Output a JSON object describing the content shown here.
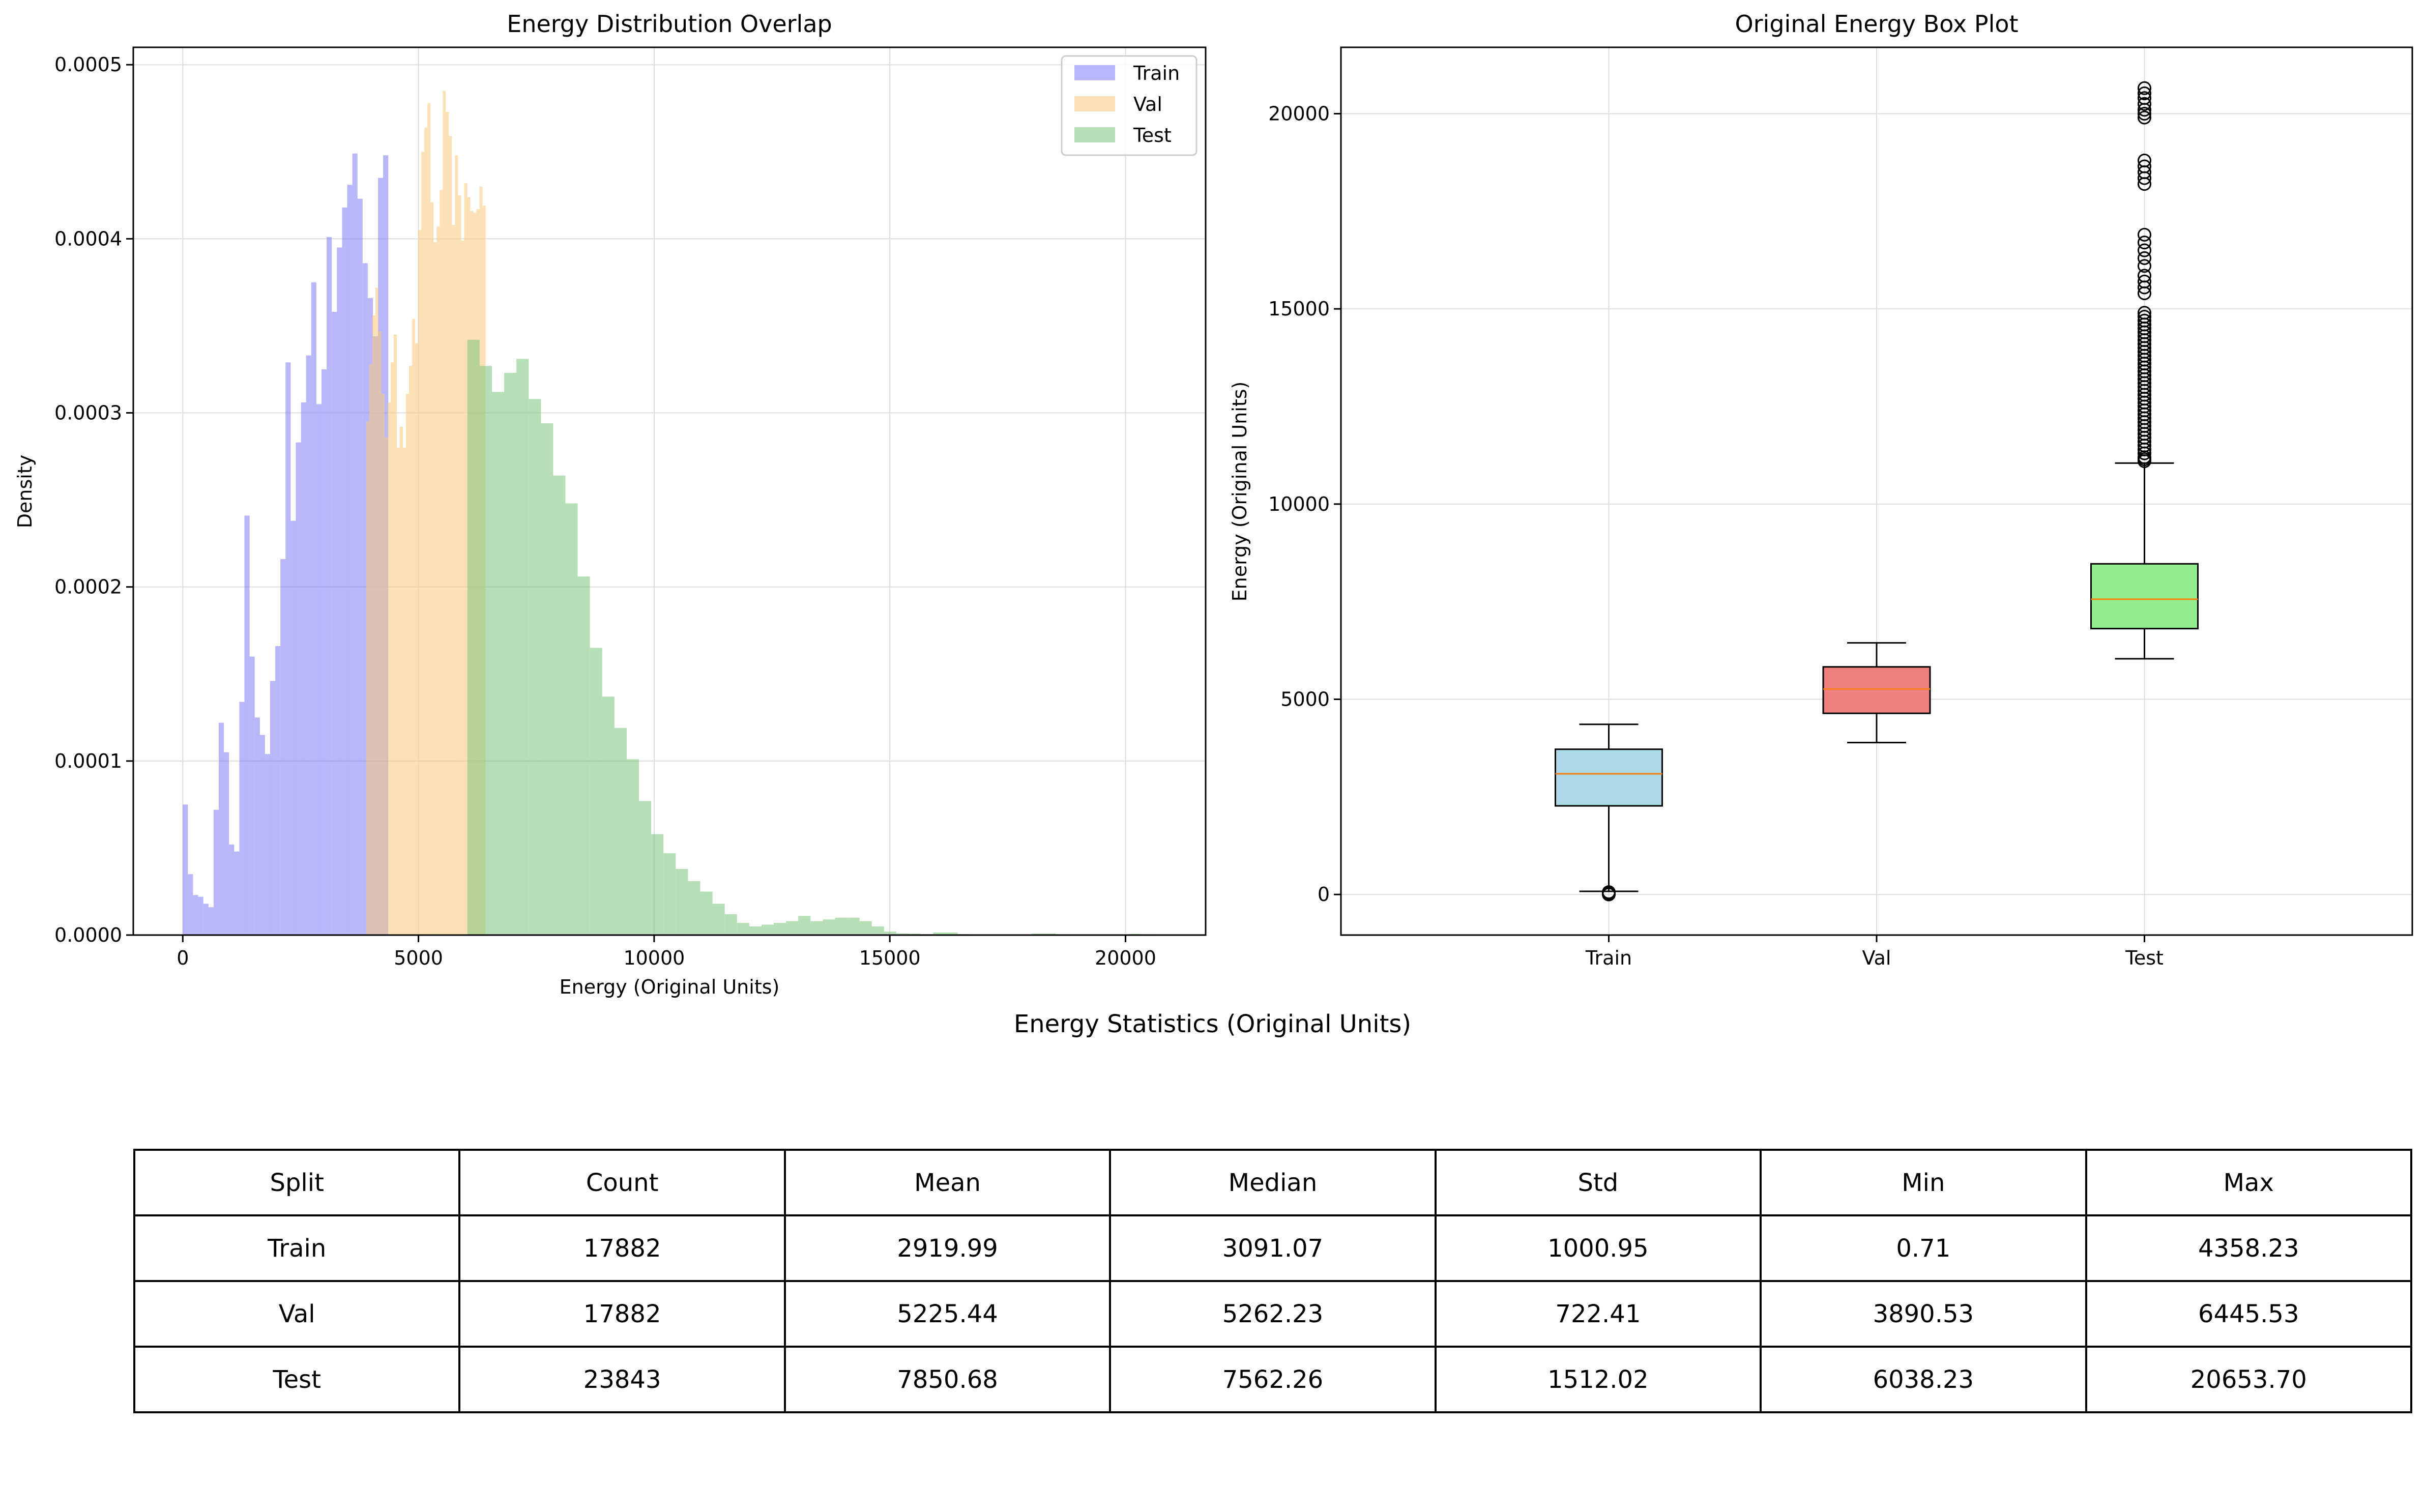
{
  "colors": {
    "train": "#7b7bf4",
    "val": "#fcc97a",
    "test": "#7cc57c",
    "box_train": "#add8e6",
    "box_val": "#f08080",
    "box_test": "#90ee90",
    "median": "#ff7f0e",
    "grid": "#dddddd"
  },
  "chart_data": [
    {
      "type": "histogram",
      "title": "Energy Distribution Overlap",
      "xlabel": "Energy (Original Units)",
      "ylabel": "Density",
      "xlim": [
        -1050,
        21700
      ],
      "ylim": [
        0,
        0.00051
      ],
      "xticks": [
        "0",
        "5000",
        "10000",
        "15000",
        "20000"
      ],
      "yticks": [
        "0.0000",
        "0.0001",
        "0.0002",
        "0.0003",
        "0.0004",
        "0.0005"
      ],
      "grid": true,
      "legend_position": "top-right",
      "series": [
        {
          "name": "Train",
          "color_key": "train",
          "bin_width": 109,
          "bins": [
            [
              0,
              7.5e-05
            ],
            [
              109,
              3.5e-05
            ],
            [
              218,
              2.3e-05
            ],
            [
              327,
              2.2e-05
            ],
            [
              436,
              1.8e-05
            ],
            [
              545,
              1.6e-05
            ],
            [
              654,
              7.2e-05
            ],
            [
              763,
              0.000122
            ],
            [
              872,
              0.000105
            ],
            [
              981,
              5.2e-05
            ],
            [
              1090,
              4.8e-05
            ],
            [
              1199,
              0.000134
            ],
            [
              1308,
              0.000241
            ],
            [
              1417,
              0.00016
            ],
            [
              1526,
              0.000125
            ],
            [
              1635,
              0.000115
            ],
            [
              1744,
              0.000104
            ],
            [
              1853,
              0.000146
            ],
            [
              1962,
              0.000166
            ],
            [
              2071,
              0.000216
            ],
            [
              2180,
              0.000329
            ],
            [
              2289,
              0.000238
            ],
            [
              2398,
              0.000283
            ],
            [
              2507,
              0.000306
            ],
            [
              2616,
              0.000333
            ],
            [
              2725,
              0.000375
            ],
            [
              2834,
              0.000305
            ],
            [
              2943,
              0.000325
            ],
            [
              3052,
              0.000401
            ],
            [
              3161,
              0.000358
            ],
            [
              3270,
              0.000395
            ],
            [
              3379,
              0.000418
            ],
            [
              3488,
              0.000431
            ],
            [
              3597,
              0.000449
            ],
            [
              3706,
              0.000423
            ],
            [
              3815,
              0.000386
            ],
            [
              3924,
              0.000366
            ],
            [
              4033,
              0.000344
            ],
            [
              4142,
              0.000435
            ],
            [
              4251,
              0.000448
            ]
          ]
        },
        {
          "name": "Val",
          "color_key": "val",
          "bin_width": 65,
          "bins": [
            [
              3890,
              0.000295
            ],
            [
              3955,
              0.000328
            ],
            [
              4020,
              0.000356
            ],
            [
              4085,
              0.000372
            ],
            [
              4150,
              0.000347
            ],
            [
              4215,
              0.000311
            ],
            [
              4280,
              0.000286
            ],
            [
              4345,
              0.000306
            ],
            [
              4410,
              0.000329
            ],
            [
              4475,
              0.000345
            ],
            [
              4540,
              0.00028
            ],
            [
              4605,
              0.000292
            ],
            [
              4670,
              0.00028
            ],
            [
              4735,
              0.000311
            ],
            [
              4800,
              0.000327
            ],
            [
              4865,
              0.000354
            ],
            [
              4930,
              0.00034
            ],
            [
              4995,
              0.000405
            ],
            [
              5060,
              0.00045
            ],
            [
              5125,
              0.000464
            ],
            [
              5190,
              0.000478
            ],
            [
              5255,
              0.000421
            ],
            [
              5320,
              0.000398
            ],
            [
              5385,
              0.000407
            ],
            [
              5450,
              0.000428
            ],
            [
              5515,
              0.000485
            ],
            [
              5580,
              0.000473
            ],
            [
              5645,
              0.000459
            ],
            [
              5710,
              0.000408
            ],
            [
              5775,
              0.000448
            ],
            [
              5840,
              0.000425
            ],
            [
              5905,
              0.000399
            ],
            [
              5970,
              0.000432
            ],
            [
              6035,
              0.000424
            ],
            [
              6100,
              0.000416
            ],
            [
              6165,
              0.000415
            ],
            [
              6230,
              0.000417
            ],
            [
              6295,
              0.00043
            ],
            [
              6360,
              0.000419
            ]
          ]
        },
        {
          "name": "Test",
          "color_key": "test",
          "bin_width": 260,
          "bins": [
            [
              6038,
              0.000342
            ],
            [
              6298,
              0.000327
            ],
            [
              6558,
              0.000312
            ],
            [
              6818,
              0.000323
            ],
            [
              7078,
              0.000331
            ],
            [
              7338,
              0.000308
            ],
            [
              7598,
              0.000294
            ],
            [
              7858,
              0.000264
            ],
            [
              8118,
              0.000248
            ],
            [
              8378,
              0.000206
            ],
            [
              8638,
              0.000165
            ],
            [
              8898,
              0.000137
            ],
            [
              9158,
              0.000119
            ],
            [
              9418,
              0.000101
            ],
            [
              9678,
              7.7e-05
            ],
            [
              9938,
              5.8e-05
            ],
            [
              10198,
              4.7e-05
            ],
            [
              10458,
              3.8e-05
            ],
            [
              10718,
              3.1e-05
            ],
            [
              10978,
              2.5e-05
            ],
            [
              11238,
              1.8e-05
            ],
            [
              11498,
              1.2e-05
            ],
            [
              11758,
              7e-06
            ],
            [
              12018,
              5e-06
            ],
            [
              12278,
              6e-06
            ],
            [
              12538,
              7e-06
            ],
            [
              12798,
              8e-06
            ],
            [
              13058,
              1.1e-05
            ],
            [
              13318,
              8e-06
            ],
            [
              13578,
              9e-06
            ],
            [
              13838,
              1e-05
            ],
            [
              14098,
              1e-05
            ],
            [
              14358,
              8e-06
            ],
            [
              14618,
              5e-06
            ],
            [
              14878,
              2e-06
            ],
            [
              15138,
              1e-06
            ],
            [
              15398,
              8e-07
            ],
            [
              15658,
              6e-07
            ],
            [
              15918,
              1.5e-06
            ],
            [
              16178,
              1.5e-06
            ],
            [
              16438,
              6e-07
            ],
            [
              16698,
              4e-07
            ],
            [
              16958,
              3e-07
            ],
            [
              17218,
              2e-07
            ],
            [
              17478,
              3e-07
            ],
            [
              17738,
              3e-07
            ],
            [
              17998,
              9e-07
            ],
            [
              18258,
              9e-07
            ],
            [
              18518,
              5e-07
            ],
            [
              18778,
              4e-07
            ],
            [
              19038,
              2e-07
            ],
            [
              19298,
              2e-07
            ],
            [
              19558,
              2e-07
            ],
            [
              19818,
              3e-07
            ],
            [
              20078,
              7e-07
            ],
            [
              20338,
              5e-07
            ]
          ]
        }
      ]
    },
    {
      "type": "box",
      "title": "Original Energy Box Plot",
      "xlabel": "",
      "ylabel": "Energy (Original Units)",
      "ylim": [
        -1040,
        21700
      ],
      "yticks": [
        "0",
        "5000",
        "10000",
        "15000",
        "20000"
      ],
      "categories": [
        "Train",
        "Val",
        "Test"
      ],
      "grid": true,
      "boxes": [
        {
          "name": "Train",
          "whisker_low": 80,
          "q1": 2270,
          "median": 3091.07,
          "q3": 3720,
          "whisker_high": 4358.23,
          "color_key": "box_train",
          "outliers": [
            0.71,
            15,
            30,
            45,
            60
          ]
        },
        {
          "name": "Val",
          "whisker_low": 3890.53,
          "q1": 4640,
          "median": 5262.23,
          "q3": 5830,
          "whisker_high": 6445.53,
          "color_key": "box_val",
          "outliers": []
        },
        {
          "name": "Test",
          "whisker_low": 6038.23,
          "q1": 6810,
          "median": 7562.26,
          "q3": 8470,
          "whisker_high": 11050,
          "color_key": "box_test",
          "outliers": [
            11100,
            11150,
            11200,
            11300,
            11400,
            11500,
            11600,
            11700,
            11800,
            11900,
            12000,
            12100,
            12200,
            12300,
            12400,
            12500,
            12600,
            12700,
            12800,
            12900,
            13000,
            13100,
            13200,
            13300,
            13400,
            13500,
            13600,
            13700,
            13800,
            13900,
            14000,
            14100,
            14200,
            14300,
            14400,
            14500,
            14600,
            14700,
            14800,
            14900,
            15400,
            15550,
            15700,
            15850,
            16100,
            16300,
            16500,
            16700,
            16900,
            18200,
            18350,
            18500,
            18650,
            18800,
            19900,
            20000,
            20100,
            20250,
            20400,
            20520,
            20653.7
          ]
        }
      ]
    },
    {
      "type": "table",
      "title": "Energy Statistics (Original Units)",
      "columns": [
        "Split",
        "Count",
        "Mean",
        "Median",
        "Std",
        "Min",
        "Max"
      ],
      "rows": [
        [
          "Train",
          "17882",
          "2919.99",
          "3091.07",
          "1000.95",
          "0.71",
          "4358.23"
        ],
        [
          "Val",
          "17882",
          "5225.44",
          "5262.23",
          "722.41",
          "3890.53",
          "6445.53"
        ],
        [
          "Test",
          "23843",
          "7850.68",
          "7562.26",
          "1512.02",
          "6038.23",
          "20653.70"
        ]
      ]
    }
  ]
}
